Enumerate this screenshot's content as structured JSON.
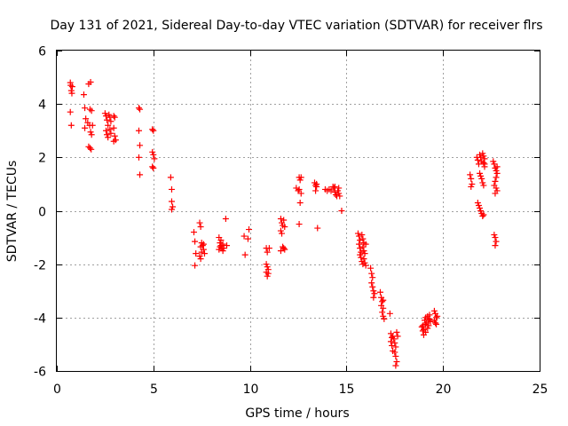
{
  "chart_data": {
    "type": "scatter",
    "title": "Day 131 of 2021, Sidereal Day-to-day VTEC variation (SDTVAR) for receiver flrs",
    "xlabel": "GPS time / hours",
    "ylabel": "SDTVAR / TECUs",
    "xlim": [
      0,
      25
    ],
    "ylim": [
      -6,
      6
    ],
    "xticks": [
      0,
      5,
      10,
      15,
      20,
      25
    ],
    "yticks": [
      -6,
      -4,
      -2,
      0,
      2,
      4,
      6
    ],
    "grid": true,
    "marker": "+",
    "series": [
      {
        "name": "SDTVAR",
        "color": "#ff0000",
        "points": [
          [
            0.7,
            4.8
          ],
          [
            0.72,
            4.7
          ],
          [
            0.75,
            4.5
          ],
          [
            0.78,
            4.4
          ],
          [
            0.7,
            3.7
          ],
          [
            0.75,
            3.2
          ],
          [
            0.8,
            4.65
          ],
          [
            1.4,
            4.35
          ],
          [
            1.45,
            3.85
          ],
          [
            1.5,
            3.45
          ],
          [
            1.45,
            3.1
          ],
          [
            1.6,
            3.3
          ],
          [
            1.65,
            4.75
          ],
          [
            1.75,
            4.82
          ],
          [
            1.72,
            3.8
          ],
          [
            1.8,
            3.75
          ],
          [
            1.7,
            3.2
          ],
          [
            1.75,
            2.95
          ],
          [
            1.8,
            2.85
          ],
          [
            1.72,
            2.35
          ],
          [
            1.78,
            2.3
          ],
          [
            1.65,
            2.4
          ],
          [
            1.85,
            3.2
          ],
          [
            2.5,
            3.65
          ],
          [
            2.55,
            3.55
          ],
          [
            2.6,
            3.4
          ],
          [
            2.65,
            3.2
          ],
          [
            2.55,
            3.0
          ],
          [
            2.6,
            2.85
          ],
          [
            2.65,
            2.75
          ],
          [
            2.7,
            3.6
          ],
          [
            2.75,
            3.5
          ],
          [
            2.8,
            3.35
          ],
          [
            2.75,
            3.05
          ],
          [
            2.8,
            2.9
          ],
          [
            2.95,
            3.55
          ],
          [
            3.0,
            3.5
          ],
          [
            2.95,
            3.1
          ],
          [
            3.0,
            2.8
          ],
          [
            2.95,
            2.6
          ],
          [
            3.05,
            2.65
          ],
          [
            4.25,
            3.85
          ],
          [
            4.3,
            3.8
          ],
          [
            4.25,
            3.0
          ],
          [
            4.3,
            2.45
          ],
          [
            4.25,
            2.0
          ],
          [
            4.3,
            1.35
          ],
          [
            4.95,
            3.05
          ],
          [
            5.0,
            3.0
          ],
          [
            4.95,
            2.2
          ],
          [
            5.0,
            2.1
          ],
          [
            5.05,
            1.95
          ],
          [
            4.95,
            1.65
          ],
          [
            5.0,
            1.6
          ],
          [
            5.9,
            1.25
          ],
          [
            5.95,
            0.8
          ],
          [
            5.95,
            0.35
          ],
          [
            6.0,
            0.15
          ],
          [
            5.95,
            0.05
          ],
          [
            7.1,
            -0.8
          ],
          [
            7.15,
            -1.15
          ],
          [
            7.2,
            -1.6
          ],
          [
            7.15,
            -2.05
          ],
          [
            7.4,
            -0.45
          ],
          [
            7.45,
            -0.6
          ],
          [
            7.5,
            -1.2
          ],
          [
            7.45,
            -1.35
          ],
          [
            7.5,
            -1.55
          ],
          [
            7.4,
            -1.7
          ],
          [
            7.45,
            -1.8
          ],
          [
            7.55,
            -1.3
          ],
          [
            7.6,
            -1.45
          ],
          [
            7.65,
            -1.6
          ],
          [
            7.6,
            -1.25
          ],
          [
            8.4,
            -1.0
          ],
          [
            8.45,
            -1.2
          ],
          [
            8.5,
            -1.3
          ],
          [
            8.55,
            -1.4
          ],
          [
            8.4,
            -1.45
          ],
          [
            8.45,
            -1.35
          ],
          [
            8.5,
            -1.1
          ],
          [
            8.6,
            -1.25
          ],
          [
            8.65,
            -1.4
          ],
          [
            8.6,
            -1.5
          ],
          [
            8.75,
            -0.3
          ],
          [
            8.8,
            -1.3
          ],
          [
            9.7,
            -0.95
          ],
          [
            9.75,
            -1.65
          ],
          [
            9.95,
            -0.7
          ],
          [
            9.9,
            -1.05
          ],
          [
            10.85,
            -1.4
          ],
          [
            10.9,
            -1.55
          ],
          [
            10.85,
            -2.0
          ],
          [
            10.9,
            -2.1
          ],
          [
            10.95,
            -2.2
          ],
          [
            10.85,
            -2.3
          ],
          [
            10.9,
            -2.45
          ],
          [
            11.0,
            -1.4
          ],
          [
            10.95,
            -2.35
          ],
          [
            11.6,
            -0.3
          ],
          [
            11.65,
            -0.45
          ],
          [
            11.7,
            -0.55
          ],
          [
            11.6,
            -0.75
          ],
          [
            11.65,
            -0.85
          ],
          [
            11.7,
            -1.35
          ],
          [
            11.6,
            -1.5
          ],
          [
            11.75,
            -0.35
          ],
          [
            11.8,
            -0.6
          ],
          [
            11.75,
            -1.4
          ],
          [
            11.8,
            -1.45
          ],
          [
            12.4,
            0.85
          ],
          [
            12.5,
            0.75
          ],
          [
            12.55,
            1.25
          ],
          [
            12.6,
            1.15
          ],
          [
            12.55,
            0.8
          ],
          [
            12.65,
            0.65
          ],
          [
            12.6,
            0.3
          ],
          [
            12.55,
            -0.5
          ],
          [
            12.65,
            1.25
          ],
          [
            13.35,
            1.05
          ],
          [
            13.4,
            0.95
          ],
          [
            13.45,
            0.9
          ],
          [
            13.4,
            0.75
          ],
          [
            13.5,
            -0.65
          ],
          [
            13.45,
            1.0
          ],
          [
            13.9,
            0.8
          ],
          [
            14.0,
            0.75
          ],
          [
            14.1,
            0.8
          ],
          [
            14.2,
            0.75
          ],
          [
            14.3,
            0.9
          ],
          [
            14.35,
            0.85
          ],
          [
            14.4,
            0.7
          ],
          [
            14.45,
            0.6
          ],
          [
            14.5,
            0.55
          ],
          [
            14.55,
            0.75
          ],
          [
            14.6,
            0.85
          ],
          [
            14.6,
            0.65
          ],
          [
            14.65,
            0.55
          ],
          [
            14.4,
            0.9
          ],
          [
            14.75,
            0.0
          ],
          [
            15.6,
            -0.85
          ],
          [
            15.65,
            -0.95
          ],
          [
            15.7,
            -1.1
          ],
          [
            15.65,
            -1.25
          ],
          [
            15.7,
            -1.4
          ],
          [
            15.75,
            -1.55
          ],
          [
            15.7,
            -1.65
          ],
          [
            15.75,
            -1.75
          ],
          [
            15.8,
            -1.9
          ],
          [
            15.85,
            -2.0
          ],
          [
            15.8,
            -0.9
          ],
          [
            15.85,
            -1.05
          ],
          [
            15.9,
            -1.2
          ],
          [
            15.85,
            -1.35
          ],
          [
            15.9,
            -1.5
          ],
          [
            15.95,
            -1.6
          ],
          [
            15.9,
            -1.8
          ],
          [
            15.95,
            -1.95
          ],
          [
            16.0,
            -2.05
          ],
          [
            16.0,
            -1.25
          ],
          [
            16.25,
            -2.15
          ],
          [
            16.3,
            -2.35
          ],
          [
            16.35,
            -2.5
          ],
          [
            16.3,
            -2.7
          ],
          [
            16.35,
            -2.85
          ],
          [
            16.4,
            -3.0
          ],
          [
            16.45,
            -3.1
          ],
          [
            16.4,
            -3.25
          ],
          [
            16.75,
            -3.05
          ],
          [
            16.8,
            -3.25
          ],
          [
            16.85,
            -3.4
          ],
          [
            16.8,
            -3.55
          ],
          [
            16.9,
            -3.65
          ],
          [
            16.85,
            -3.8
          ],
          [
            16.9,
            -3.95
          ],
          [
            16.95,
            -4.05
          ],
          [
            16.9,
            -3.35
          ],
          [
            17.25,
            -3.85
          ],
          [
            17.3,
            -4.6
          ],
          [
            17.35,
            -4.75
          ],
          [
            17.3,
            -4.9
          ],
          [
            17.35,
            -5.05
          ],
          [
            17.4,
            -5.25
          ],
          [
            17.45,
            -4.8
          ],
          [
            17.5,
            -4.95
          ],
          [
            17.55,
            -5.1
          ],
          [
            17.5,
            -5.3
          ],
          [
            17.55,
            -5.45
          ],
          [
            17.6,
            -5.65
          ],
          [
            17.55,
            -5.8
          ],
          [
            17.65,
            -4.7
          ],
          [
            17.6,
            -4.55
          ],
          [
            17.4,
            -4.7
          ],
          [
            18.9,
            -4.35
          ],
          [
            18.95,
            -4.5
          ],
          [
            19.0,
            -4.65
          ],
          [
            18.95,
            -4.3
          ],
          [
            19.05,
            -4.1
          ],
          [
            19.1,
            -4.25
          ],
          [
            19.0,
            -4.45
          ],
          [
            19.1,
            -4.0
          ],
          [
            19.15,
            -4.2
          ],
          [
            19.2,
            -3.95
          ],
          [
            19.25,
            -4.1
          ],
          [
            19.3,
            -3.9
          ],
          [
            19.25,
            -4.3
          ],
          [
            19.35,
            -4.15
          ],
          [
            19.2,
            -4.4
          ],
          [
            19.1,
            -4.55
          ],
          [
            19.3,
            -4.05
          ],
          [
            19.55,
            -3.75
          ],
          [
            19.6,
            -3.85
          ],
          [
            19.65,
            -4.0
          ],
          [
            19.6,
            -4.2
          ],
          [
            19.65,
            -4.25
          ],
          [
            19.7,
            -3.95
          ],
          [
            19.55,
            -4.1
          ],
          [
            21.4,
            1.35
          ],
          [
            21.45,
            1.2
          ],
          [
            21.5,
            1.0
          ],
          [
            21.45,
            0.9
          ],
          [
            21.75,
            2.0
          ],
          [
            21.8,
            1.9
          ],
          [
            21.85,
            1.75
          ],
          [
            21.9,
            2.1
          ],
          [
            21.95,
            2.0
          ],
          [
            22.0,
            1.85
          ],
          [
            22.05,
            2.15
          ],
          [
            22.1,
            2.05
          ],
          [
            22.15,
            1.95
          ],
          [
            22.1,
            1.8
          ],
          [
            22.15,
            1.65
          ],
          [
            21.8,
            0.3
          ],
          [
            21.85,
            0.2
          ],
          [
            21.9,
            0.1
          ],
          [
            21.95,
            0.0
          ],
          [
            22.0,
            -0.1
          ],
          [
            22.05,
            -0.2
          ],
          [
            21.9,
            1.4
          ],
          [
            21.95,
            1.3
          ],
          [
            22.0,
            1.2
          ],
          [
            22.05,
            1.05
          ],
          [
            22.1,
            0.95
          ],
          [
            22.1,
            -0.15
          ],
          [
            22.15,
            1.75
          ],
          [
            22.6,
            1.85
          ],
          [
            22.65,
            1.75
          ],
          [
            22.7,
            1.6
          ],
          [
            22.75,
            1.5
          ],
          [
            22.8,
            1.4
          ],
          [
            22.75,
            1.25
          ],
          [
            22.7,
            1.1
          ],
          [
            22.65,
            0.95
          ],
          [
            22.75,
            0.85
          ],
          [
            22.8,
            0.75
          ],
          [
            22.7,
            0.65
          ],
          [
            22.65,
            -0.9
          ],
          [
            22.7,
            -1.0
          ],
          [
            22.75,
            -1.15
          ],
          [
            22.7,
            -1.3
          ],
          [
            22.8,
            1.65
          ]
        ]
      }
    ]
  }
}
